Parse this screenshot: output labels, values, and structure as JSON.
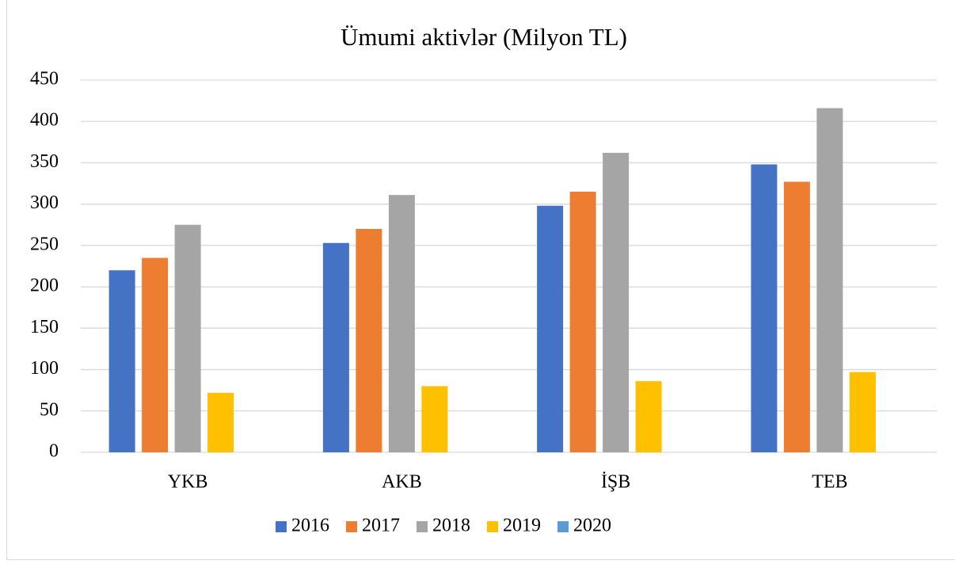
{
  "chart_data": {
    "type": "bar",
    "title": "Ümumi aktivlər (Milyon TL)",
    "categories": [
      "YKB",
      "AKB",
      "İŞB",
      "TEB"
    ],
    "series": [
      {
        "name": "2016",
        "color": "#4472c4",
        "values": [
          220,
          253,
          298,
          348
        ]
      },
      {
        "name": "2017",
        "color": "#ed7d31",
        "values": [
          235,
          270,
          315,
          327
        ]
      },
      {
        "name": "2018",
        "color": "#a5a5a5",
        "values": [
          275,
          311,
          362,
          416
        ]
      },
      {
        "name": "2019",
        "color": "#ffc000",
        "values": [
          72,
          80,
          86,
          97
        ]
      },
      {
        "name": "2020",
        "color": "#5b9bd5",
        "values": [
          null,
          null,
          null,
          null
        ]
      }
    ],
    "ylim": [
      0,
      450
    ],
    "yticks": [
      0,
      50,
      100,
      150,
      200,
      250,
      300,
      350,
      400,
      450
    ],
    "grid": true,
    "legend": "bottom"
  }
}
